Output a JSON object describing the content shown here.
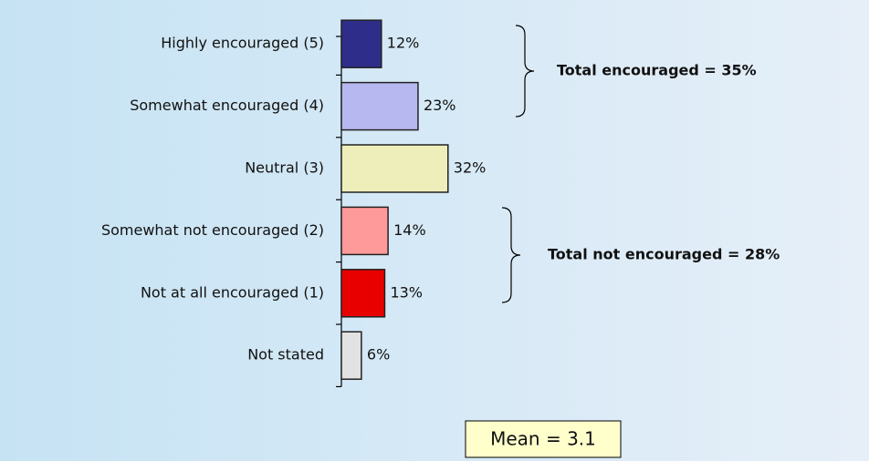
{
  "chart_data": {
    "type": "bar",
    "orientation": "horizontal",
    "categories": [
      "Highly encouraged (5)",
      "Somewhat encouraged (4)",
      "Neutral (3)",
      "Somewhat not encouraged (2)",
      "Not at all encouraged (1)",
      "Not stated"
    ],
    "values": [
      12,
      23,
      32,
      14,
      13,
      6
    ],
    "value_labels": [
      "12%",
      "23%",
      "32%",
      "14%",
      "13%",
      "6%"
    ],
    "colors": [
      "#2e2e8a",
      "#b8b8f0",
      "#eeeebb",
      "#ff9a9a",
      "#e80000",
      "#e2e2e2"
    ],
    "xlim": [
      0,
      100
    ],
    "annotations": [
      "Total encouraged = 35%",
      "Total not encouraged = 28%",
      "Mean = 3.1"
    ]
  }
}
